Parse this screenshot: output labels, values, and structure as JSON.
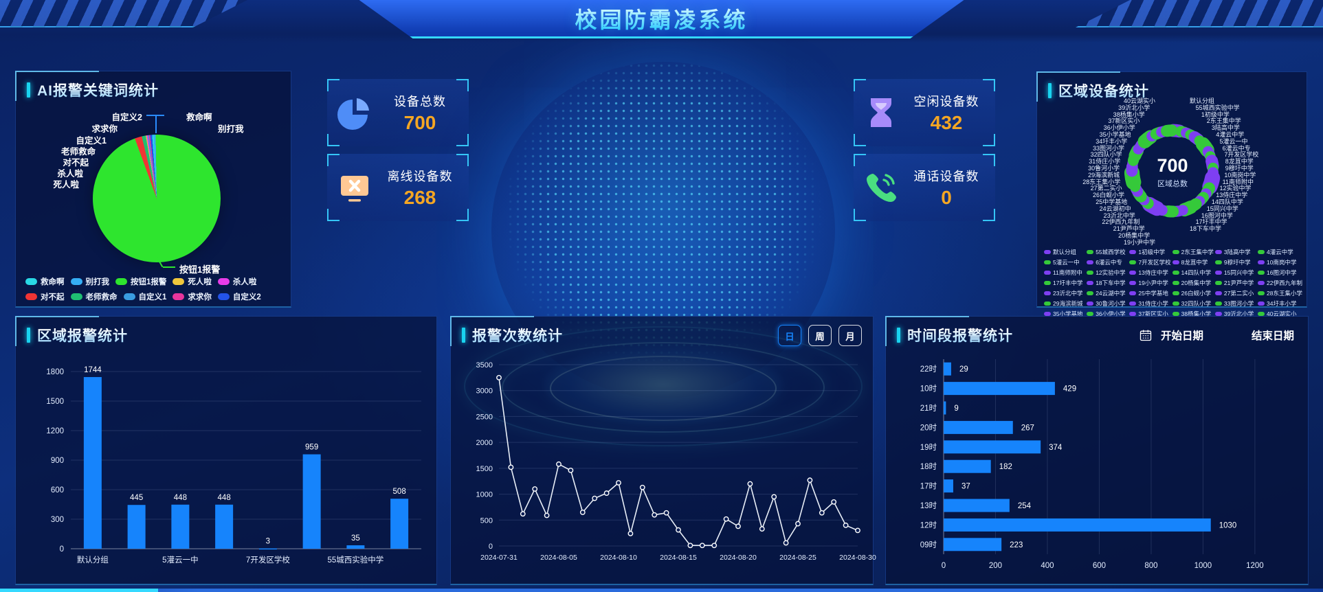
{
  "header": {
    "title": "校园防霸凌系统"
  },
  "stat_cards": [
    {
      "label": "设备总数",
      "value": "700"
    },
    {
      "label": "离线设备数",
      "value": "268"
    },
    {
      "label": "空闲设备数",
      "value": "432"
    },
    {
      "label": "通话设备数",
      "value": "0"
    }
  ],
  "panels": {
    "keywords": {
      "title": "AI报警关键词统计",
      "callouts": [
        "自定义2",
        "救命啊",
        "别打我",
        "求求你",
        "自定义1",
        "老师救命",
        "对不起",
        "杀人啦",
        "死人啦"
      ],
      "slice_callout": "按钮1报警",
      "legend": [
        {
          "name": "救命啊",
          "color": "#29d8e5"
        },
        {
          "name": "别打我",
          "color": "#35aef5"
        },
        {
          "name": "按钮1报警",
          "color": "#2ee52e"
        },
        {
          "name": "死人啦",
          "color": "#f0c73c"
        },
        {
          "name": "杀人啦",
          "color": "#e83ce8"
        },
        {
          "name": "对不起",
          "color": "#f03434"
        },
        {
          "name": "老师救命",
          "color": "#1fbf72"
        },
        {
          "name": "自定义1",
          "color": "#3a9ce0"
        },
        {
          "name": "求求你",
          "color": "#e8359c"
        },
        {
          "name": "自定义2",
          "color": "#2353e8"
        }
      ]
    },
    "region_devices": {
      "title": "区域设备统计",
      "center_value": "700",
      "center_label": "区域总数",
      "labels_left": [
        "40云湖实小",
        "39沂北小学",
        "38杨集小学",
        "37新区实小",
        "36小伊小学",
        "35小学基地",
        "34圩丰小学",
        "33图河小学",
        "32四队小学",
        "31侍庄小学",
        "30鲁河小学",
        "29海滨新城",
        "28东王集小学",
        "27第二实小",
        "26白蚬小学",
        "25中学基地",
        "24云湖初中",
        "23沂北中学",
        "22伊西九年制",
        "21尹芦中学",
        "20杨集中学",
        "19小尹中学"
      ],
      "labels_right": [
        "默认分组",
        "55城西实验中学",
        "1初级中学",
        "2东王集中学",
        "3陆高中学",
        "4灌云中学",
        "5灌云一中",
        "6灌云中专",
        "7开发区学校",
        "8龙苴中学",
        "9穆圩中学",
        "10南岗中学",
        "11南师附中",
        "12实验中学",
        "13侍庄中学",
        "14四队中学",
        "15同兴中学",
        "16图河中学",
        "17圩丰中学",
        "18下车中学"
      ]
    },
    "region_alarms": {
      "title": "区域报警统计"
    },
    "alarm_counts": {
      "title": "报警次数统计",
      "range_buttons": [
        "日",
        "周",
        "月"
      ],
      "active_range": "日"
    },
    "time_alarms": {
      "title": "时间段报警统计",
      "start_date_label": "开始日期",
      "end_date_label": "结束日期"
    }
  },
  "chart_data": [
    {
      "id": "keyword_pie",
      "type": "pie",
      "title": "AI报警关键词统计",
      "slices": [
        {
          "name": "对不起",
          "color": "#f03434",
          "value": 1.8
        },
        {
          "name": "老师救命",
          "color": "#1fbf72",
          "value": 1.0
        },
        {
          "name": "死人啦",
          "color": "#f0c73c",
          "value": 0.2
        },
        {
          "name": "杀人啦",
          "color": "#e83ce8",
          "value": 0.3
        },
        {
          "name": "自定义1",
          "color": "#3a9ce0",
          "value": 0.3
        },
        {
          "name": "求求你",
          "color": "#e8359c",
          "value": 0.3
        },
        {
          "name": "自定义2",
          "color": "#2353e8",
          "value": 0.5
        },
        {
          "name": "救命啊",
          "color": "#29d8e5",
          "value": 0.4
        },
        {
          "name": "别打我",
          "color": "#35aef5",
          "value": 0.5
        },
        {
          "name": "按钮1报警",
          "color": "#2ee52e",
          "value": 94.7
        }
      ]
    },
    {
      "id": "device_donut",
      "type": "pie",
      "title": "区域设备统计",
      "center_total": 700,
      "palette": {
        "purple": "#7e3ff2",
        "green": "#35c93a"
      },
      "segments": [
        {
          "name": "默认分组",
          "color": "#7e3ff2",
          "weight": 2.0
        },
        {
          "name": "55城西学校",
          "color": "#35c93a",
          "weight": 1.2
        },
        {
          "name": "1初级中学",
          "color": "#7e3ff2",
          "weight": 1.0
        },
        {
          "name": "2东王集中学",
          "color": "#35c93a",
          "weight": 1.0
        },
        {
          "name": "3陆高中学",
          "color": "#7e3ff2",
          "weight": 1.5
        },
        {
          "name": "4灌云中学",
          "color": "#35c93a",
          "weight": 1.0
        },
        {
          "name": "5灌云一中",
          "color": "#35c93a",
          "weight": 2.5
        },
        {
          "name": "6灌云中专",
          "color": "#7e3ff2",
          "weight": 1.2
        },
        {
          "name": "7开发区学校",
          "color": "#35c93a",
          "weight": 1.0
        },
        {
          "name": "8龙苴中学",
          "color": "#7e3ff2",
          "weight": 1.8
        },
        {
          "name": "9穆圩中学",
          "color": "#35c93a",
          "weight": 1.0
        },
        {
          "name": "10南岗中学",
          "color": "#7e3ff2",
          "weight": 1.2
        },
        {
          "name": "11南师附中",
          "color": "#7e3ff2",
          "weight": 3.0
        },
        {
          "name": "12实验中学",
          "color": "#35c93a",
          "weight": 1.5
        },
        {
          "name": "13侍庄中学",
          "color": "#7e3ff2",
          "weight": 1.0
        },
        {
          "name": "14四队中学",
          "color": "#35c93a",
          "weight": 1.2
        },
        {
          "name": "15同兴中学",
          "color": "#7e3ff2",
          "weight": 1.0
        },
        {
          "name": "16图河中学",
          "color": "#35c93a",
          "weight": 1.5
        },
        {
          "name": "17圩丰中学",
          "color": "#35c93a",
          "weight": 2.2
        },
        {
          "name": "18下车中学",
          "color": "#7e3ff2",
          "weight": 1.0
        },
        {
          "name": "19小尹中学",
          "color": "#7e3ff2",
          "weight": 1.2
        },
        {
          "name": "20杨集中学",
          "color": "#35c93a",
          "weight": 1.5
        },
        {
          "name": "21尹芦中学",
          "color": "#35c93a",
          "weight": 1.0
        },
        {
          "name": "22伊西九年制",
          "color": "#7e3ff2",
          "weight": 1.2
        },
        {
          "name": "23沂北中学",
          "color": "#7e3ff2",
          "weight": 2.8
        },
        {
          "name": "24云湖中学",
          "color": "#35c93a",
          "weight": 1.2
        },
        {
          "name": "25中学基地",
          "color": "#7e3ff2",
          "weight": 1.0
        },
        {
          "name": "26白蚬小学",
          "color": "#35c93a",
          "weight": 1.5
        },
        {
          "name": "27第二实小",
          "color": "#7e3ff2",
          "weight": 1.2
        },
        {
          "name": "28东王集小学",
          "color": "#35c93a",
          "weight": 1.0
        },
        {
          "name": "29海滨新城",
          "color": "#35c93a",
          "weight": 3.2
        },
        {
          "name": "30鲁河小学",
          "color": "#7e3ff2",
          "weight": 1.4
        },
        {
          "name": "31侍庄小学",
          "color": "#7e3ff2",
          "weight": 1.0
        },
        {
          "name": "32四队小学",
          "color": "#35c93a",
          "weight": 1.2
        },
        {
          "name": "33图河小学",
          "color": "#35c93a",
          "weight": 1.8
        },
        {
          "name": "34圩丰小学",
          "color": "#7e3ff2",
          "weight": 1.0
        },
        {
          "name": "35小学基地",
          "color": "#7e3ff2",
          "weight": 1.2
        },
        {
          "name": "36小伊小学",
          "color": "#35c93a",
          "weight": 2.4
        },
        {
          "name": "37新区实小",
          "color": "#7e3ff2",
          "weight": 1.0
        },
        {
          "name": "38杨集小学",
          "color": "#35c93a",
          "weight": 1.4
        },
        {
          "name": "39沂北小学",
          "color": "#7e3ff2",
          "weight": 1.2
        },
        {
          "name": "40云湖实小",
          "color": "#35c93a",
          "weight": 1.6
        }
      ]
    },
    {
      "id": "region_bar",
      "type": "bar",
      "title": "区域报警统计",
      "categories": [
        "默认分组",
        "",
        "5灌云一中",
        "",
        "7开发区学校",
        "",
        "55城西实验中学",
        ""
      ],
      "values": [
        1744,
        445,
        448,
        448,
        3,
        959,
        35,
        508
      ],
      "bar_color": "#1684fc",
      "ylim": [
        0,
        1800
      ],
      "yticks": [
        0,
        300,
        600,
        900,
        1200,
        1500,
        1800
      ]
    },
    {
      "id": "alarm_line",
      "type": "line",
      "title": "报警次数统计",
      "x": [
        "2024-07-31",
        "2024-08-01",
        "2024-08-02",
        "2024-08-03",
        "2024-08-04",
        "2024-08-05",
        "2024-08-06",
        "2024-08-07",
        "2024-08-08",
        "2024-08-09",
        "2024-08-10",
        "2024-08-11",
        "2024-08-12",
        "2024-08-13",
        "2024-08-14",
        "2024-08-15",
        "2024-08-16",
        "2024-08-17",
        "2024-08-18",
        "2024-08-19",
        "2024-08-20",
        "2024-08-21",
        "2024-08-22",
        "2024-08-23",
        "2024-08-24",
        "2024-08-25",
        "2024-08-26",
        "2024-08-27",
        "2024-08-28",
        "2024-08-29",
        "2024-08-30"
      ],
      "values": [
        3250,
        1520,
        620,
        1100,
        590,
        1580,
        1460,
        650,
        920,
        1020,
        1220,
        240,
        1130,
        600,
        640,
        310,
        10,
        10,
        10,
        520,
        380,
        1200,
        330,
        950,
        60,
        430,
        1270,
        640,
        850,
        400,
        300
      ],
      "x_tick_labels": [
        "2024-07-31",
        "2024-08-05",
        "2024-08-10",
        "2024-08-15",
        "2024-08-20",
        "2024-08-25",
        "2024-08-30"
      ],
      "line_color": "#e8eef7",
      "ylim": [
        0,
        3500
      ],
      "yticks": [
        0,
        500,
        1000,
        1500,
        2000,
        2500,
        3000,
        3500
      ]
    },
    {
      "id": "hour_hbar",
      "type": "bar",
      "orientation": "horizontal",
      "title": "时间段报警统计",
      "categories": [
        "22时",
        "10时",
        "21时",
        "20时",
        "19时",
        "18时",
        "17时",
        "13时",
        "12时",
        "09时"
      ],
      "values": [
        29,
        429,
        9,
        267,
        374,
        182,
        37,
        254,
        1030,
        223
      ],
      "bar_color": "#1684fc",
      "xlim": [
        0,
        1200
      ],
      "xticks": [
        0,
        200,
        400,
        600,
        800,
        1000,
        1200
      ]
    }
  ]
}
